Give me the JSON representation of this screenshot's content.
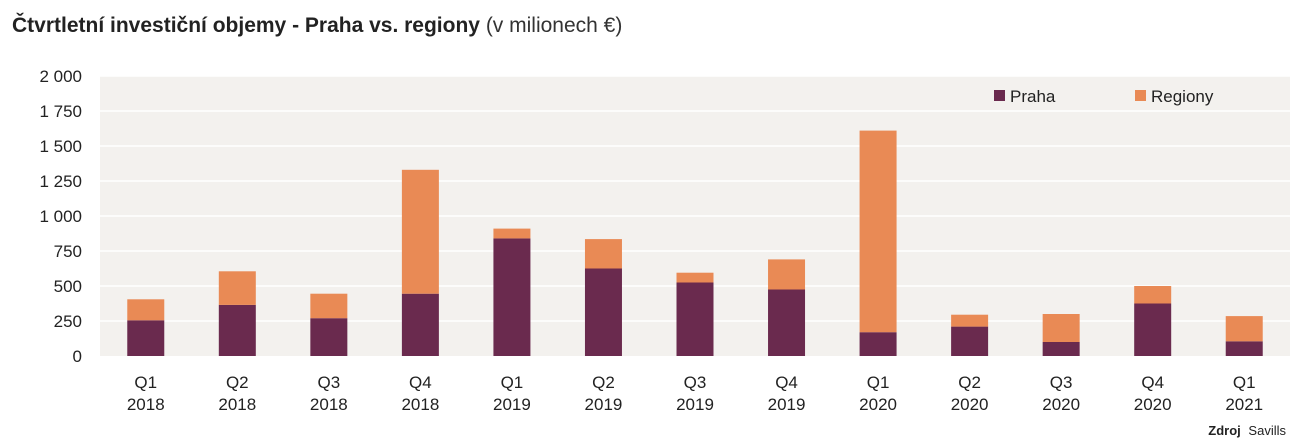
{
  "chart_data": {
    "type": "bar",
    "stacked": true,
    "title": "Čtvrtletní investiční objemy - Praha vs. regiony",
    "subtitle": "(v milionech €)",
    "categories": [
      [
        "Q1",
        "2018"
      ],
      [
        "Q2",
        "2018"
      ],
      [
        "Q3",
        "2018"
      ],
      [
        "Q4",
        "2018"
      ],
      [
        "Q1",
        "2019"
      ],
      [
        "Q2",
        "2019"
      ],
      [
        "Q3",
        "2019"
      ],
      [
        "Q4",
        "2019"
      ],
      [
        "Q1",
        "2020"
      ],
      [
        "Q2",
        "2020"
      ],
      [
        "Q3",
        "2020"
      ],
      [
        "Q4",
        "2020"
      ],
      [
        "Q1",
        "2021"
      ]
    ],
    "series": [
      {
        "name": "Praha",
        "color": "#6a2a4e",
        "values": [
          255,
          365,
          270,
          445,
          840,
          625,
          525,
          475,
          170,
          210,
          100,
          375,
          105
        ]
      },
      {
        "name": "Regiony",
        "color": "#e98a55",
        "values": [
          150,
          240,
          175,
          885,
          70,
          210,
          70,
          215,
          1440,
          85,
          200,
          125,
          180
        ]
      }
    ],
    "ylim": [
      0,
      2000
    ],
    "yticks": [
      0,
      250,
      500,
      750,
      1000,
      1250,
      1500,
      1750,
      2000
    ],
    "ytick_labels": [
      "0",
      "250",
      "500",
      "750",
      "1 000",
      "1 250",
      "1 500",
      "1 750",
      "2 000"
    ],
    "grid": true,
    "legend_position": "top-right",
    "xlabel": "",
    "ylabel": ""
  },
  "source": {
    "label": "Zdroj",
    "value": "Savills"
  },
  "colors": {
    "plot_background": "#f3f1ee",
    "gridline": "#ffffff"
  }
}
